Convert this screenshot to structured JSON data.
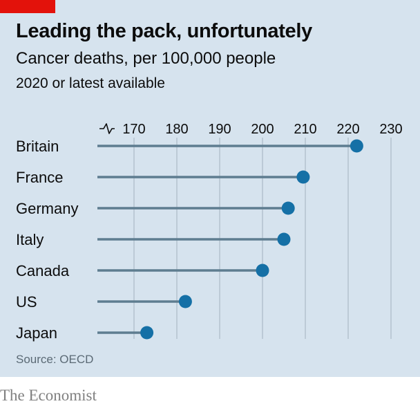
{
  "header": {
    "title": "Leading the pack, unfortunately",
    "subtitle": "Cancer deaths, per 100,000 people",
    "note": "2020 or latest available"
  },
  "footer": {
    "source": "Source: OECD",
    "brand": "The Economist"
  },
  "colors": {
    "background": "#d6e3ee",
    "accent": "#e3120b",
    "dot": "#1570a6",
    "stem": "#5e7d90",
    "grid": "#b4c2cd"
  },
  "chart_data": {
    "type": "dot-plot",
    "orientation": "horizontal",
    "categories": [
      "Britain",
      "France",
      "Germany",
      "Italy",
      "Canada",
      "US",
      "Japan"
    ],
    "values": [
      222,
      209.5,
      206,
      205,
      200,
      182,
      173
    ],
    "x_ticks": [
      170,
      180,
      190,
      200,
      210,
      220,
      230
    ],
    "xlim": [
      160,
      230
    ],
    "axis_break": true,
    "grid": true
  }
}
